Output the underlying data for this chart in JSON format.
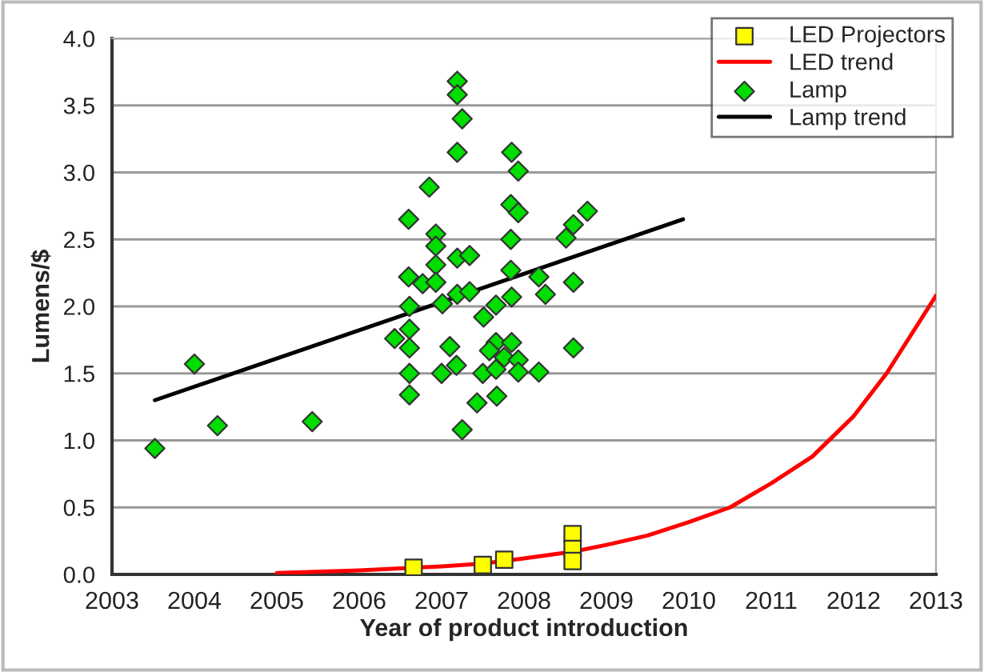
{
  "chart_data": {
    "type": "scatter",
    "xlabel": "Year of product introduction",
    "ylabel": "Lumens/$",
    "xlim": [
      2003,
      2013
    ],
    "xticks": [
      2003,
      2004,
      2005,
      2006,
      2007,
      2008,
      2009,
      2010,
      2011,
      2012,
      2013
    ],
    "ylim": [
      0,
      4.0
    ],
    "yticks": [
      {
        "value": 0,
        "label": "0.0"
      },
      {
        "value": 0.5,
        "label": "0.5"
      },
      {
        "value": 1.0,
        "label": "1.0"
      },
      {
        "value": 1.5,
        "label": "1.5"
      },
      {
        "value": 2.0,
        "label": "2.0"
      },
      {
        "value": 2.5,
        "label": "2.5"
      },
      {
        "value": 3.0,
        "label": "3.0"
      },
      {
        "value": 3.5,
        "label": "3.5"
      },
      {
        "value": 4.0,
        "label": "4.0"
      }
    ],
    "grid": "y",
    "legend": "top right",
    "series": [
      {
        "name": "LED Projectors",
        "marker": "square",
        "color": "#ffff00",
        "x": [
          2006.66,
          2007.5,
          2007.76,
          2008.59,
          2008.59,
          2008.59
        ],
        "values": [
          0.05,
          0.07,
          0.11,
          0.3,
          0.19,
          0.1
        ]
      },
      {
        "name": "LED trend",
        "type": "line",
        "marker": "none",
        "color": "#ff0000",
        "x": [
          2005,
          2006,
          2007,
          2007.5,
          2008,
          2008.6,
          2009,
          2009.5,
          2010,
          2010.5,
          2011,
          2011.5,
          2012,
          2012.4,
          2013
        ],
        "values": [
          0.01,
          0.03,
          0.06,
          0.08,
          0.12,
          0.17,
          0.22,
          0.29,
          0.39,
          0.5,
          0.68,
          0.88,
          1.18,
          1.5,
          2.08
        ]
      },
      {
        "name": "Lamp",
        "marker": "diamond",
        "color": "#00dd00",
        "x": [
          2003.52,
          2004.0,
          2004.28,
          2005.43,
          2006.61,
          2006.43,
          2006.61,
          2006.61,
          2006.61,
          2006.61,
          2007.19,
          2007.19,
          2007.25,
          2007.19,
          2007.85,
          2007.93,
          2006.85,
          2006.6,
          2007.84,
          2007.93,
          2008.77,
          2008.6,
          2008.51,
          2006.93,
          2006.93,
          2007.84,
          2006.93,
          2007.19,
          2007.34,
          2006.6,
          2006.77,
          2006.93,
          2007.84,
          2008.18,
          2008.6,
          2008.26,
          2007.85,
          2007.19,
          2007.34,
          2007.01,
          2007.66,
          2007.51,
          2007.1,
          2007.66,
          2007.85,
          2007.58,
          2008.6,
          2007.76,
          2007.93,
          2007.18,
          2007.0,
          2007.5,
          2007.66,
          2007.93,
          2008.18,
          2007.43,
          2007.67,
          2007.25
        ],
        "values": [
          0.94,
          1.57,
          1.11,
          1.14,
          2.0,
          1.76,
          1.83,
          1.69,
          1.5,
          1.34,
          3.68,
          3.58,
          3.4,
          3.15,
          3.15,
          3.01,
          2.89,
          2.65,
          2.76,
          2.7,
          2.71,
          2.61,
          2.51,
          2.54,
          2.45,
          2.5,
          2.31,
          2.36,
          2.38,
          2.22,
          2.17,
          2.18,
          2.27,
          2.22,
          2.18,
          2.09,
          2.07,
          2.09,
          2.11,
          2.02,
          2.01,
          1.92,
          1.7,
          1.73,
          1.73,
          1.67,
          1.69,
          1.62,
          1.6,
          1.56,
          1.5,
          1.5,
          1.53,
          1.51,
          1.51,
          1.28,
          1.33,
          1.08
        ]
      },
      {
        "name": "Lamp trend",
        "type": "line",
        "marker": "none",
        "color": "#000000",
        "x": [
          2003.52,
          2009.93
        ],
        "values": [
          1.3,
          2.65
        ]
      }
    ]
  }
}
